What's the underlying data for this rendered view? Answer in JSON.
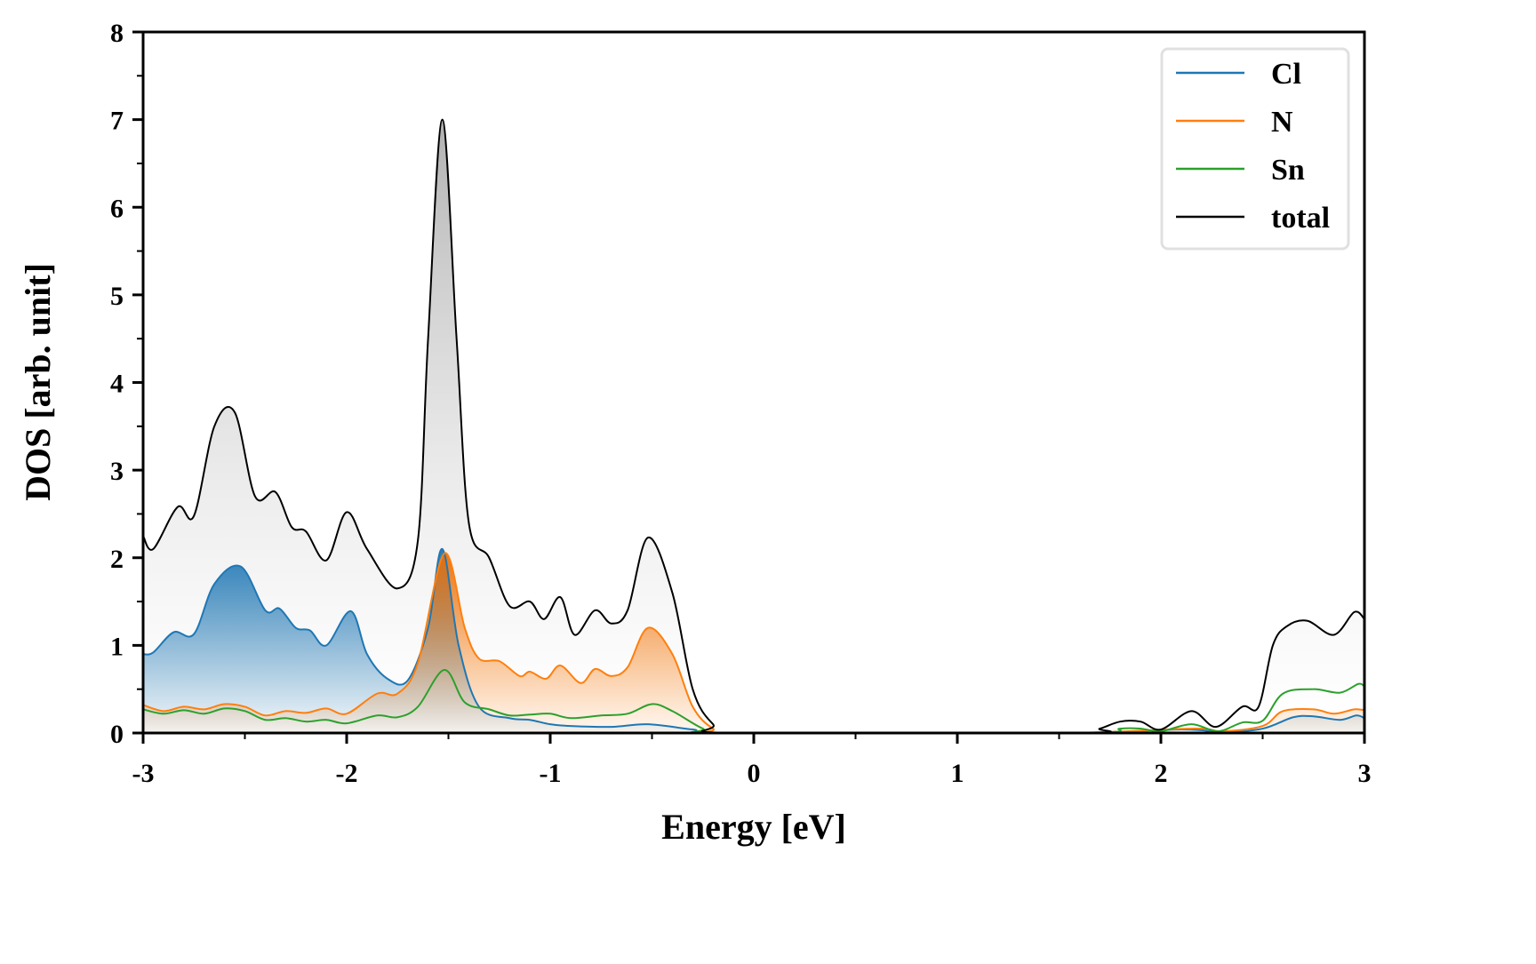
{
  "chart_data": {
    "type": "line",
    "title": "",
    "xlabel": "Energy [eV]",
    "ylabel": "DOS [arb. unit]",
    "xlim": [
      -3,
      3
    ],
    "ylim": [
      0,
      8
    ],
    "xticks": [
      -3,
      -2,
      -1,
      0,
      1,
      2,
      3
    ],
    "xtick_labels": [
      "-3",
      "-2",
      "-1",
      "0",
      "1",
      "2",
      "3"
    ],
    "xminor_step": 0.5,
    "yticks": [
      0,
      1,
      2,
      3,
      4,
      5,
      6,
      7,
      8
    ],
    "ytick_labels": [
      "0",
      "1",
      "2",
      "3",
      "4",
      "5",
      "6",
      "7",
      "8"
    ],
    "yminor_step": 0.5,
    "grid": false,
    "legend_position": "top-right",
    "series": [
      {
        "name": "Cl",
        "color": "#1f77b4",
        "filled": true,
        "x": [
          -3,
          -2.95,
          -2.85,
          -2.75,
          -2.65,
          -2.52,
          -2.4,
          -2.33,
          -2.25,
          -2.18,
          -2.1,
          -1.98,
          -1.9,
          -1.8,
          -1.7,
          -1.6,
          -1.53,
          -1.45,
          -1.35,
          -1.2,
          -1.1,
          -1.0,
          -0.9,
          -0.7,
          -0.52,
          -0.3,
          -0.1,
          1.5,
          2.1,
          2.3,
          2.5,
          2.65,
          2.75,
          2.88,
          2.96,
          3
        ],
        "y": [
          0.9,
          0.92,
          1.15,
          1.13,
          1.7,
          1.9,
          1.4,
          1.42,
          1.2,
          1.17,
          1.0,
          1.39,
          0.9,
          0.62,
          0.6,
          1.2,
          2.1,
          1.0,
          0.3,
          0.17,
          0.15,
          0.1,
          0.08,
          0.07,
          0.1,
          0.04,
          0,
          0,
          0.04,
          0.01,
          0.05,
          0.18,
          0.19,
          0.15,
          0.2,
          0.17
        ]
      },
      {
        "name": "N",
        "color": "#ff7f0e",
        "filled": true,
        "x": [
          -3,
          -2.9,
          -2.8,
          -2.7,
          -2.6,
          -2.5,
          -2.4,
          -2.3,
          -2.2,
          -2.1,
          -2.0,
          -1.85,
          -1.75,
          -1.65,
          -1.52,
          -1.42,
          -1.35,
          -1.25,
          -1.15,
          -1.1,
          -1.02,
          -0.95,
          -0.85,
          -0.78,
          -0.7,
          -0.62,
          -0.52,
          -0.4,
          -0.3,
          -0.2,
          -0.1,
          1.5,
          2.15,
          2.3,
          2.5,
          2.6,
          2.75,
          2.85,
          2.95,
          3
        ],
        "y": [
          0.32,
          0.25,
          0.3,
          0.27,
          0.33,
          0.3,
          0.2,
          0.25,
          0.23,
          0.28,
          0.22,
          0.45,
          0.45,
          0.8,
          2.05,
          1.2,
          0.85,
          0.82,
          0.65,
          0.7,
          0.62,
          0.77,
          0.57,
          0.73,
          0.65,
          0.75,
          1.2,
          0.9,
          0.3,
          0.05,
          0,
          0,
          0.05,
          0.02,
          0.08,
          0.25,
          0.27,
          0.22,
          0.27,
          0.26
        ]
      },
      {
        "name": "Sn",
        "color": "#2ca02c",
        "filled": false,
        "x": [
          -3,
          -2.9,
          -2.8,
          -2.7,
          -2.6,
          -2.5,
          -2.4,
          -2.3,
          -2.2,
          -2.1,
          -2.0,
          -1.85,
          -1.75,
          -1.65,
          -1.52,
          -1.42,
          -1.3,
          -1.2,
          -1.1,
          -1.0,
          -0.9,
          -0.75,
          -0.62,
          -0.5,
          -0.4,
          -0.25,
          -0.15,
          1.6,
          1.8,
          1.9,
          2.0,
          2.15,
          2.28,
          2.4,
          2.5,
          2.6,
          2.75,
          2.88,
          2.97,
          3
        ],
        "y": [
          0.27,
          0.22,
          0.26,
          0.22,
          0.28,
          0.25,
          0.15,
          0.17,
          0.13,
          0.15,
          0.11,
          0.2,
          0.18,
          0.3,
          0.72,
          0.35,
          0.27,
          0.2,
          0.21,
          0.22,
          0.17,
          0.2,
          0.22,
          0.33,
          0.25,
          0.05,
          0,
          0,
          0.05,
          0.05,
          0.02,
          0.1,
          0.02,
          0.12,
          0.14,
          0.45,
          0.5,
          0.46,
          0.56,
          0.53
        ]
      },
      {
        "name": "total",
        "color": "#000000",
        "filled": true,
        "x": [
          -3,
          -2.95,
          -2.83,
          -2.75,
          -2.65,
          -2.55,
          -2.45,
          -2.35,
          -2.27,
          -2.2,
          -2.1,
          -2.0,
          -1.9,
          -1.75,
          -1.65,
          -1.6,
          -1.53,
          -1.46,
          -1.4,
          -1.3,
          -1.2,
          -1.1,
          -1.03,
          -0.95,
          -0.88,
          -0.78,
          -0.7,
          -0.62,
          -0.52,
          -0.4,
          -0.3,
          -0.2,
          -0.1,
          1.6,
          1.7,
          1.8,
          1.9,
          2.0,
          2.15,
          2.27,
          2.4,
          2.48,
          2.55,
          2.62,
          2.72,
          2.85,
          2.95,
          3
        ],
        "y": [
          2.25,
          2.1,
          2.58,
          2.48,
          3.5,
          3.66,
          2.7,
          2.75,
          2.35,
          2.3,
          1.97,
          2.52,
          2.1,
          1.65,
          2.2,
          4.5,
          7.0,
          4.5,
          2.4,
          2.0,
          1.45,
          1.5,
          1.3,
          1.55,
          1.12,
          1.4,
          1.25,
          1.4,
          2.23,
          1.6,
          0.5,
          0.1,
          0,
          0,
          0.05,
          0.13,
          0.13,
          0.04,
          0.25,
          0.07,
          0.3,
          0.3,
          1.0,
          1.22,
          1.28,
          1.12,
          1.38,
          1.3
        ]
      }
    ]
  }
}
